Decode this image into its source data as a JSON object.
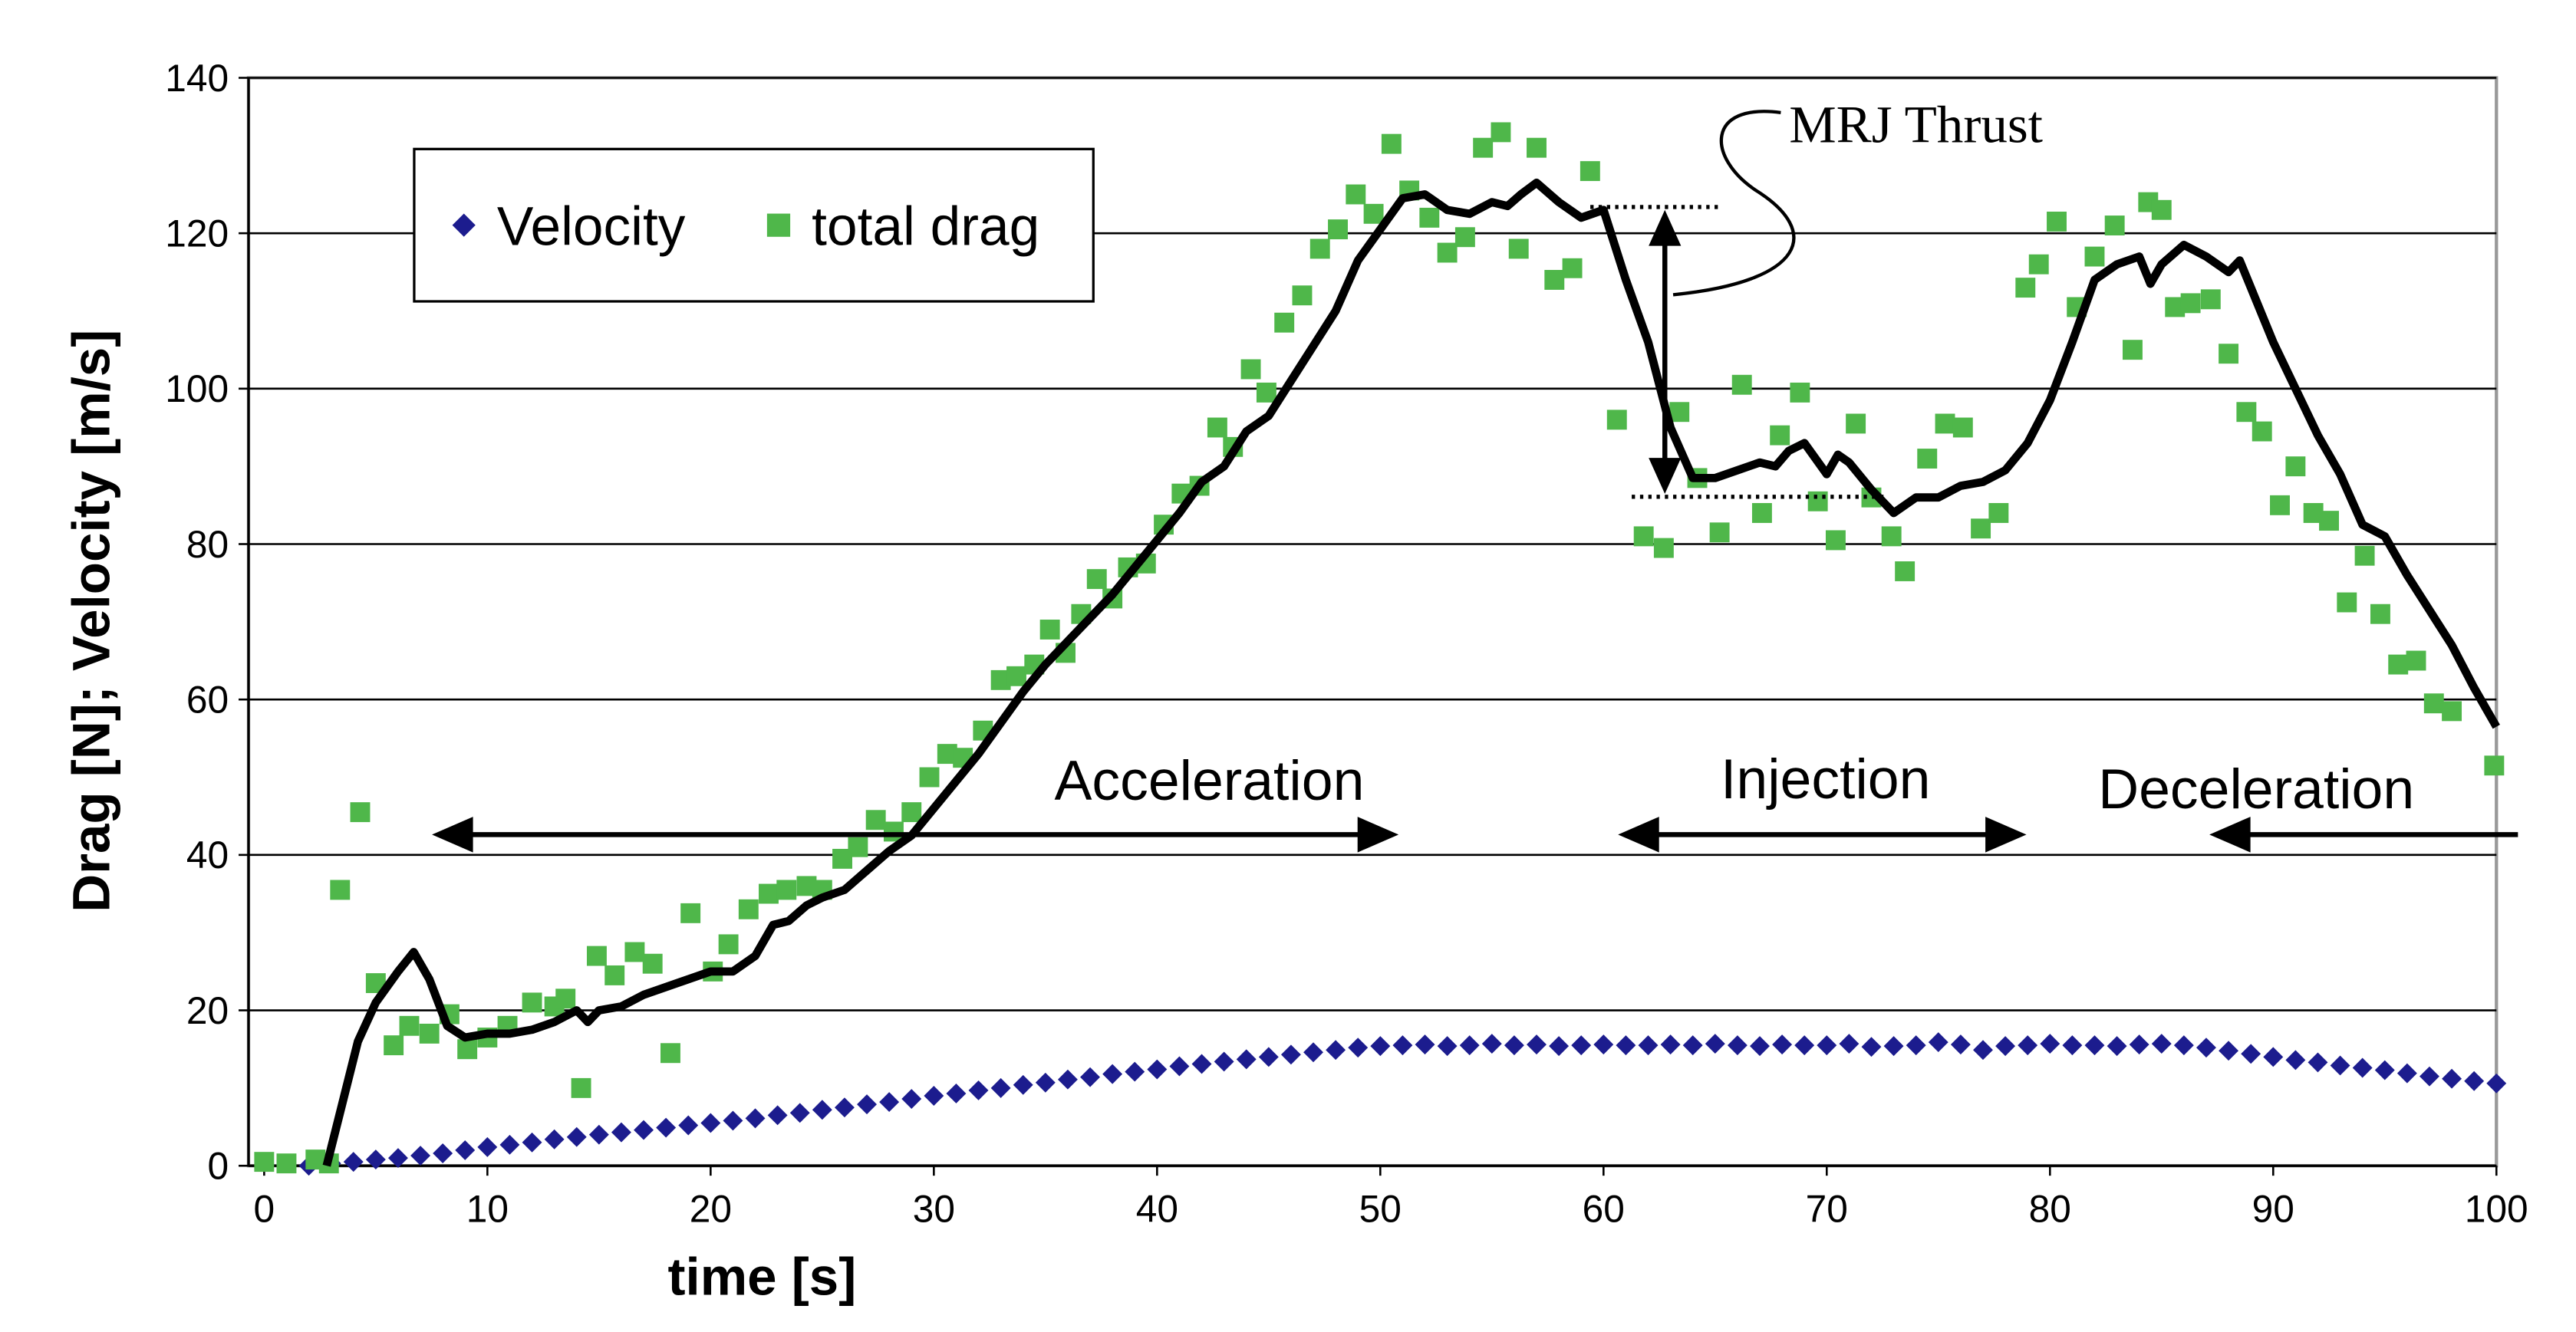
{
  "chart_data": {
    "type": "scatter",
    "xlabel": "time [s]",
    "ylabel": "Drag [N]; Velocity [m/s]",
    "xlim": [
      -0.7,
      100
    ],
    "xticks": [
      0,
      10,
      20,
      30,
      40,
      50,
      60,
      70,
      80,
      90,
      100
    ],
    "ylim": [
      0,
      140
    ],
    "yticks": [
      0,
      20,
      40,
      60,
      80,
      100,
      120,
      140
    ],
    "grid": true,
    "legend": "upper left",
    "annotations": [
      "MRJ Thrust",
      "Acceleration",
      "Injection",
      "Deceleration"
    ],
    "series": [
      {
        "name": "Velocity",
        "color": "#1c1c8e",
        "marker": "diamond",
        "x": [
          2,
          3,
          4,
          5,
          6,
          7,
          8,
          9,
          10,
          11,
          12,
          13,
          14,
          15,
          16,
          17,
          18,
          19,
          20,
          21,
          22,
          23,
          24,
          25,
          26,
          27,
          28,
          29,
          30,
          31,
          32,
          33,
          34,
          35,
          36,
          37,
          38,
          39,
          40,
          41,
          42,
          43,
          44,
          45,
          46,
          47,
          48,
          49,
          50,
          51,
          52,
          53,
          54,
          55,
          56,
          57,
          58,
          59,
          60,
          61,
          62,
          63,
          64,
          65,
          66,
          67,
          68,
          69,
          70,
          71,
          72,
          73,
          74,
          75,
          76,
          77,
          78,
          79,
          80,
          81,
          82,
          83,
          84,
          85,
          86,
          87,
          88,
          89,
          90,
          91,
          92,
          93,
          94,
          95,
          96,
          97,
          98,
          99,
          100
        ],
        "values": [
          0,
          0.3,
          0.5,
          0.8,
          1,
          1.3,
          1.6,
          2,
          2.4,
          2.7,
          3,
          3.4,
          3.7,
          4,
          4.3,
          4.6,
          4.9,
          5.2,
          5.5,
          5.8,
          6.1,
          6.5,
          6.8,
          7.2,
          7.5,
          7.9,
          8.2,
          8.6,
          9,
          9.3,
          9.7,
          10,
          10.4,
          10.7,
          11.1,
          11.4,
          11.8,
          12.1,
          12.4,
          12.8,
          13.1,
          13.4,
          13.7,
          14,
          14.3,
          14.6,
          14.9,
          15.2,
          15.4,
          15.5,
          15.6,
          15.4,
          15.5,
          15.7,
          15.5,
          15.6,
          15.4,
          15.5,
          15.6,
          15.5,
          15.5,
          15.6,
          15.5,
          15.7,
          15.5,
          15.4,
          15.6,
          15.5,
          15.5,
          15.7,
          15.3,
          15.4,
          15.5,
          15.9,
          15.6,
          14.9,
          15.4,
          15.5,
          15.7,
          15.5,
          15.5,
          15.4,
          15.6,
          15.7,
          15.5,
          15.2,
          14.8,
          14.4,
          14,
          13.6,
          13.3,
          12.9,
          12.6,
          12.3,
          11.9,
          11.5,
          11.2,
          10.9,
          10.6
        ]
      },
      {
        "name": "total drag",
        "color": "#4fb74a",
        "marker": "square",
        "x": [
          0,
          1,
          2.3,
          2.9,
          3.4,
          4.3,
          5,
          5.8,
          6.5,
          7.4,
          8.3,
          9.1,
          10,
          10.9,
          12,
          13,
          13.5,
          14.2,
          14.9,
          15.7,
          16.6,
          17.4,
          18.2,
          19.1,
          20.1,
          20.8,
          21.7,
          22.6,
          23.4,
          24.3,
          25,
          25.9,
          26.6,
          27.4,
          28.2,
          29,
          29.8,
          30.6,
          31.3,
          32.2,
          33,
          33.7,
          34.5,
          35.2,
          35.9,
          36.6,
          37.3,
          38,
          38.7,
          39.5,
          40.3,
          41.1,
          41.9,
          42.7,
          43.4,
          44.2,
          44.9,
          45.7,
          46.5,
          47.3,
          48.1,
          48.9,
          49.7,
          50.5,
          51.3,
          52.2,
          53,
          53.8,
          54.6,
          55.4,
          56.2,
          57,
          57.8,
          58.6,
          59.4,
          60.6,
          61.8,
          62.7,
          63.4,
          64.2,
          65.2,
          66.2,
          67.1,
          67.9,
          68.8,
          69.6,
          70.4,
          71.3,
          72,
          72.9,
          73.5,
          74.5,
          75.3,
          76.1,
          76.9,
          77.7,
          78.9,
          79.5,
          80.3,
          81.2,
          82,
          82.9,
          83.7,
          84.4,
          85,
          85.6,
          86.3,
          87.2,
          88,
          88.8,
          89.5,
          90.3,
          91,
          91.8,
          92.5,
          93.3,
          94.1,
          94.8,
          95.6,
          96.4,
          97.2,
          98,
          99.9
        ],
        "values": [
          0.5,
          0.3,
          0.8,
          0.3,
          35.5,
          45.5,
          23.5,
          15.5,
          18,
          17,
          19.5,
          15,
          16.5,
          18,
          21,
          20.5,
          21.5,
          10,
          27,
          24.5,
          27.5,
          26,
          14.5,
          32.5,
          25,
          28.5,
          33,
          35,
          35.5,
          36,
          35.5,
          39.5,
          41,
          44.5,
          43,
          45.5,
          50,
          53,
          52.5,
          56,
          62.5,
          63,
          64.5,
          69,
          66,
          71,
          75.5,
          73,
          77,
          77.5,
          82.5,
          86.5,
          87.5,
          95,
          92.5,
          102.5,
          99.5,
          108.5,
          112,
          118,
          120.5,
          125,
          122.5,
          131.5,
          125.5,
          122,
          117.5,
          119.5,
          131,
          133,
          118,
          131,
          114,
          115.5,
          128,
          96,
          81,
          79.5,
          97,
          88.5,
          81.5,
          100.5,
          84,
          94,
          99.5,
          85.5,
          80.5,
          95.5,
          86,
          81,
          76.5,
          91,
          95.5,
          95,
          82,
          84,
          113,
          116,
          121.5,
          110.5,
          117,
          121,
          105,
          124,
          123,
          110.5,
          111,
          111.5,
          104.5,
          97,
          94.5,
          85,
          90,
          84,
          83,
          72.5,
          78.5,
          71,
          64.5,
          65,
          59.5,
          58.5,
          51.5
        ]
      },
      {
        "color": "#000000",
        "marker": "line",
        "x": [
          2.8,
          4.2,
          5,
          6,
          6.7,
          7.4,
          8.2,
          9,
          10,
          11,
          12,
          13,
          14,
          14.5,
          15,
          16,
          17,
          18,
          19,
          20,
          21,
          22,
          22.8,
          23.5,
          24.3,
          25,
          26,
          27,
          28,
          29,
          30,
          31,
          32,
          33,
          34,
          35,
          36,
          37,
          38,
          39,
          40,
          41,
          42,
          43,
          44,
          45,
          46,
          47,
          48,
          49,
          50,
          51,
          52,
          53,
          54,
          55,
          55.7,
          56.3,
          57,
          58,
          59,
          60,
          61,
          62,
          63,
          64,
          65,
          66,
          67,
          67.7,
          68.3,
          69,
          70,
          70.5,
          71,
          72,
          73,
          74,
          75,
          76,
          77,
          78,
          79,
          80,
          81,
          82,
          83,
          84,
          84.5,
          85,
          86,
          87,
          88,
          88.5,
          89,
          90,
          91,
          92,
          93,
          94,
          95,
          96,
          97,
          98,
          99,
          100
        ],
        "values": [
          0,
          16,
          21,
          25,
          27.5,
          24,
          18,
          16.5,
          17,
          17,
          17.5,
          18.5,
          20,
          18.5,
          20,
          20.5,
          22,
          23,
          24,
          25,
          25,
          27,
          31,
          31.5,
          33.5,
          34.5,
          35.5,
          38,
          40.5,
          42.5,
          46,
          49.5,
          53,
          57,
          61,
          64.5,
          67.5,
          70.5,
          73.5,
          77,
          80.5,
          84,
          88,
          90,
          94.5,
          96.5,
          101,
          105.5,
          110,
          116.5,
          120.5,
          124.5,
          125,
          123,
          122.5,
          124,
          123.5,
          125,
          126.5,
          124,
          122,
          123,
          114,
          106,
          95,
          88.5,
          88.5,
          89.5,
          90.5,
          90,
          92,
          93,
          89,
          91.5,
          90.5,
          87,
          84,
          86,
          86,
          87.5,
          88,
          89.5,
          93,
          98.5,
          106,
          114,
          116,
          117,
          113.5,
          116,
          118.5,
          117,
          115,
          116.5,
          113,
          106,
          100,
          94,
          89,
          82.5,
          81,
          76,
          71.5,
          67,
          61.5,
          56.5
        ]
      }
    ]
  }
}
